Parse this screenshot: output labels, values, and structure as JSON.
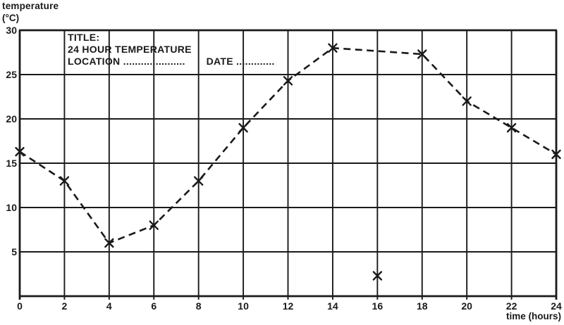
{
  "page": {
    "background": "#ffffff",
    "ink_color": "#1a1a1a"
  },
  "labels": {
    "y_axis_title_line1": "temperature",
    "y_axis_title_line2": "(°C)",
    "x_axis_title": "time (hours)"
  },
  "title_block": {
    "title_label": "TITLE:",
    "chart_title": "24 HOUR TEMPERATURE",
    "location_label": "LOCATION .....................",
    "date_label": "DATE ............."
  },
  "chart_data": {
    "type": "line",
    "title": "24 HOUR TEMPERATURE",
    "xlabel": "time (hours)",
    "ylabel": "temperature (°C)",
    "xlim": [
      0,
      24
    ],
    "ylim": [
      0,
      30
    ],
    "x_ticks": [
      0,
      2,
      4,
      6,
      8,
      10,
      12,
      14,
      16,
      18,
      20,
      22,
      24
    ],
    "y_ticks": [
      0,
      5,
      10,
      15,
      20,
      25,
      30
    ],
    "y_tick_labels_shown": [
      5,
      10,
      15,
      20,
      25,
      30
    ],
    "grid": true,
    "legend": false,
    "line_style": "dashed",
    "marker": "x",
    "series": [
      {
        "name": "temperature (°C)",
        "x": [
          0,
          2,
          4,
          6,
          8,
          10,
          12,
          14,
          18,
          20,
          22,
          24
        ],
        "y": [
          16.3,
          13,
          6,
          8,
          13,
          19,
          24.3,
          28,
          27.3,
          22,
          19,
          16
        ]
      }
    ],
    "unconnected_points": [
      {
        "x": 16,
        "y": 2.3
      }
    ]
  }
}
